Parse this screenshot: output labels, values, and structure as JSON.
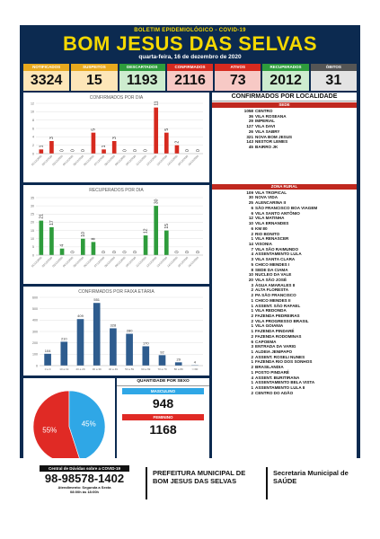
{
  "header": {
    "subtitle": "BOLETIM EPIDEMIOLÓGICO - COVID-19",
    "title": "BOM JESUS DAS SELVAS",
    "date": "quarta-feira, 16 de dezembro de 2020"
  },
  "stats": [
    {
      "label": "NOTIFICADOS",
      "value": "3324",
      "color": "#e8a91e"
    },
    {
      "label": "SUSPEITOS",
      "value": "15",
      "color": "#e8a91e"
    },
    {
      "label": "DESCARTADOS",
      "value": "1193",
      "color": "#2e9c3c"
    },
    {
      "label": "CONFIRMADOS",
      "value": "2116",
      "color": "#d62a1f"
    },
    {
      "label": "ATIVOS",
      "value": "73",
      "color": "#d62a1f"
    },
    {
      "label": "RECUPERADOS",
      "value": "2012",
      "color": "#2e9c3c"
    },
    {
      "label": "ÓBITOS",
      "value": "31",
      "color": "#555555"
    }
  ],
  "chart_data": [
    {
      "type": "bar",
      "title": "CONFIRMADOS POR DIA",
      "ylim": [
        0,
        12
      ],
      "yticks": [
        "0",
        "2",
        "4",
        "6",
        "8",
        "10",
        "12"
      ],
      "categories": [
        "01/12/2020",
        "02/12/2020",
        "03/12/2020",
        "04/12/2020",
        "05/12/2020",
        "06/12/2020",
        "07/12/2020",
        "08/12/2020",
        "09/12/2020",
        "10/12/2020",
        "11/12/2020",
        "12/12/2020",
        "13/12/2020",
        "14/12/2020",
        "15/12/2020",
        "16/12/2020"
      ],
      "values": [
        1,
        3,
        0,
        0,
        0,
        5,
        1,
        3,
        0,
        0,
        0,
        11,
        5,
        2,
        0,
        0
      ],
      "labels": [
        "1",
        "3",
        "0",
        "0",
        "0",
        "5",
        "1",
        "3",
        "0",
        "0",
        "0",
        "11",
        "5",
        "2",
        "0",
        "0"
      ],
      "color": "#d62a1f"
    },
    {
      "type": "bar",
      "title": "RECUPERADOS POR DIA",
      "ylim": [
        0,
        35
      ],
      "yticks": [
        "0",
        "5",
        "10",
        "15",
        "20",
        "25",
        "30",
        "35"
      ],
      "categories": [
        "01/12/2020",
        "02/12/2020",
        "03/12/2020",
        "04/12/2020",
        "05/12/2020",
        "06/12/2020",
        "07/12/2020",
        "08/12/2020",
        "09/12/2020",
        "10/12/2020",
        "11/12/2020",
        "12/12/2020",
        "13/12/2020",
        "14/12/2020",
        "15/12/2020",
        "16/12/2020"
      ],
      "values": [
        21,
        17,
        4,
        0,
        10,
        8,
        0,
        0,
        0,
        0,
        12,
        30,
        15,
        0,
        0,
        0
      ],
      "labels": [
        "21",
        "17",
        "4",
        "0",
        "10",
        "8",
        "0",
        "0",
        "0",
        "0",
        "12",
        "30",
        "15",
        "0",
        "0",
        "0"
      ],
      "color": "#2e9c3c"
    },
    {
      "type": "bar",
      "title": "CONFIRMADOS POR FAIXA ETÁRIA",
      "ylim": [
        0,
        600
      ],
      "yticks": [
        "0",
        "100",
        "200",
        "300",
        "400",
        "500",
        "600"
      ],
      "categories": [
        "0 a 9",
        "10 a 19",
        "20 a 29",
        "30 a 39",
        "40 a 49",
        "50 a 59",
        "60 a 69",
        "70 a 79",
        "80 a 89",
        ">=90"
      ],
      "values": [
        104,
        210,
        409,
        551,
        328,
        280,
        170,
        92,
        29,
        4
      ],
      "labels": [
        "104",
        "210",
        "409",
        "551",
        "328",
        "280",
        "170",
        "92",
        "29",
        "4"
      ],
      "color": "#2e5c8e"
    },
    {
      "type": "pie",
      "values": [
        55,
        45
      ],
      "labels": [
        "55%",
        "45%"
      ],
      "colors": [
        "#e02a25",
        "#2fa7e6"
      ]
    }
  ],
  "sex": {
    "heading": "QUANTIDADE POR SEXO",
    "male_label": "MASCULINO",
    "male_value": "948",
    "male_color": "#2fa7e6",
    "female_label": "FEMININO",
    "female_value": "1168",
    "female_color": "#e02a25"
  },
  "localities": {
    "heading": "CONFIRMADOS POR LOCALIDADE",
    "sede_label": "SEDE",
    "sede": [
      {
        "n": "1058",
        "name": "CENTRO"
      },
      {
        "n": "36",
        "name": "VILA ROSEANA"
      },
      {
        "n": "29",
        "name": "IMPERIAL"
      },
      {
        "n": "127",
        "name": "VILA DAVI"
      },
      {
        "n": "26",
        "name": "VILA SABRY"
      },
      {
        "n": "321",
        "name": "NOVA BOM JESUS"
      },
      {
        "n": "143",
        "name": "NESTOR LEMES"
      },
      {
        "n": "45",
        "name": "BAIRRO JK"
      }
    ],
    "rural_label": "ZONA RURAL",
    "rural": [
      {
        "n": "109",
        "name": "VILA TROPICAL"
      },
      {
        "n": "30",
        "name": "NOVA VIDA"
      },
      {
        "n": "25",
        "name": "ALENCARINA II"
      },
      {
        "n": "6",
        "name": "SÃO FRANCISCO BOA VIAGEM"
      },
      {
        "n": "6",
        "name": "VILA SANTO ANTÔNIO"
      },
      {
        "n": "12",
        "name": "VILA MATINHA"
      },
      {
        "n": "10",
        "name": "VILA ERNANDES"
      },
      {
        "n": "6",
        "name": "KM 80"
      },
      {
        "n": "2",
        "name": "RIO BONITO"
      },
      {
        "n": "1",
        "name": "VILA RENASCER"
      },
      {
        "n": "14",
        "name": "VISONIA"
      },
      {
        "n": "7",
        "name": "VILA SÃO RAIMUNDO"
      },
      {
        "n": "4",
        "name": "ASSENTAMENTO LULA"
      },
      {
        "n": "3",
        "name": "VILA SANTA CLARA"
      },
      {
        "n": "5",
        "name": "CHICO MENDES I"
      },
      {
        "n": "8",
        "name": "SEDE DA CIAMA"
      },
      {
        "n": "10",
        "name": "NUCLEO DA VALE"
      },
      {
        "n": "20",
        "name": "VILA SÃO JOSÉ"
      },
      {
        "n": "3",
        "name": "ÁGUA AMARALES II"
      },
      {
        "n": "2",
        "name": "ALTA FLORESTA"
      },
      {
        "n": "2",
        "name": "PA SÃO FRANCISCO"
      },
      {
        "n": "1",
        "name": "CHICO MENDES II"
      },
      {
        "n": "1",
        "name": "ASSENT. SÃO RAFAEL"
      },
      {
        "n": "1",
        "name": "VILA REDONDA"
      },
      {
        "n": "2",
        "name": "FAZENDA PEDREIRAS"
      },
      {
        "n": "2",
        "name": "VILA PROGRESSO BRASIL"
      },
      {
        "n": "1",
        "name": "VILA GOIANIA"
      },
      {
        "n": "1",
        "name": "FAZENDA PINDARÉ"
      },
      {
        "n": "2",
        "name": "FAZENDA RODOMINAS"
      },
      {
        "n": "6",
        "name": "CAPOEMA"
      },
      {
        "n": "3",
        "name": "ENTRADA DA VARIG"
      },
      {
        "n": "1",
        "name": "ALDEIA JENIPAPO"
      },
      {
        "n": "",
        "name": ""
      },
      {
        "n": "2",
        "name": "ASSENT. ROSELI NUNES"
      },
      {
        "n": "1",
        "name": "FAZENDA RIO DOS SONHOS"
      },
      {
        "n": "",
        "name": ""
      },
      {
        "n": "2",
        "name": "BRASILANDIA"
      },
      {
        "n": "",
        "name": ""
      },
      {
        "n": "1",
        "name": "POSTO PINDARÉ"
      },
      {
        "n": "4",
        "name": "ASSENT. BURITIRANA"
      },
      {
        "n": "",
        "name": ""
      },
      {
        "n": "1",
        "name": "ASSENTAMENTO BELA VISTA"
      },
      {
        "n": "1",
        "name": "ASSENTAMENTO LULA II"
      },
      {
        "n": "2",
        "name": "CENTRO DO ADÃO"
      }
    ]
  },
  "footnote": "Dados fornecidos e atualizados pela Vigilância Epidemiológica de Bom Jesus das Selvas/MA",
  "footer": {
    "hotline_label": "Central de Dúvidas sobre a COVID-19",
    "hotline_number": "98-98578-1402",
    "hotline_hours_1": "Atendimento: Segunda a Sexta",
    "hotline_hours_2": "08:00h às 18:00h",
    "prefeitura_1": "PREFEITURA MUNICIPAL DE",
    "prefeitura_2": "BOM JESUS DAS SELVAS",
    "secretaria_1": "Secretaria Municipal de",
    "secretaria_2": "SAÚDE"
  }
}
